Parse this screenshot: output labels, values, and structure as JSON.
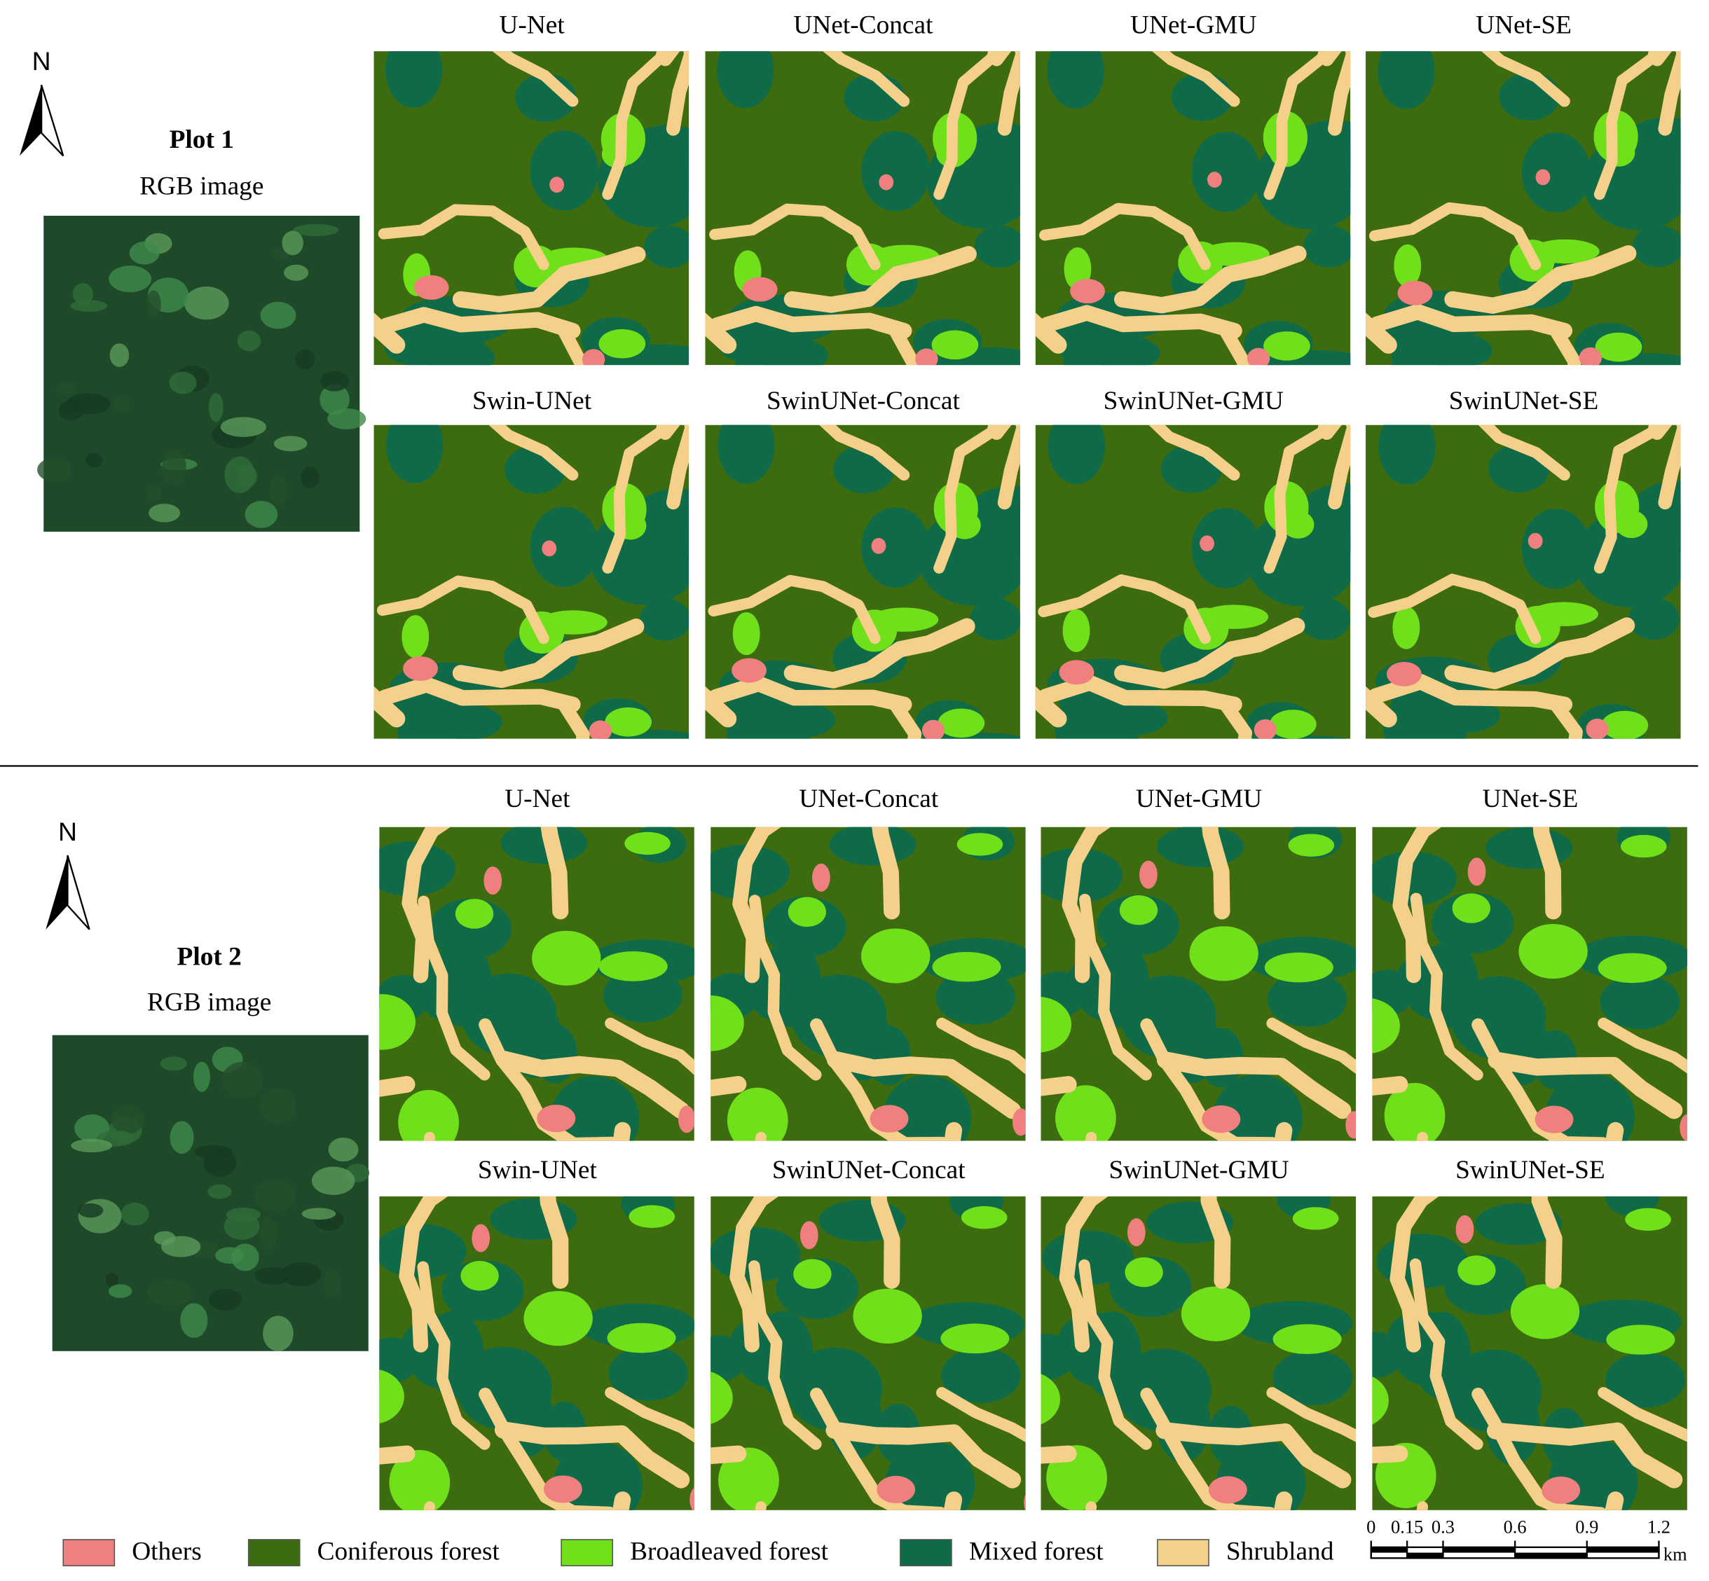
{
  "plots": [
    {
      "label": "Plot 1",
      "image_label": "RGB image",
      "north": "N",
      "models": [
        "U-Net",
        "UNet-Concat",
        "UNet-GMU",
        "UNet-SE",
        "Swin-UNet",
        "SwinUNet-Concat",
        "SwinUNet-GMU",
        "SwinUNet-SE"
      ]
    },
    {
      "label": "Plot 2",
      "image_label": "RGB image",
      "north": "N",
      "models": [
        "U-Net",
        "UNet-Concat",
        "UNet-GMU",
        "UNet-SE",
        "Swin-UNet",
        "SwinUNet-Concat",
        "SwinUNet-GMU",
        "SwinUNet-SE"
      ]
    }
  ],
  "legend": [
    {
      "name": "Others",
      "color": "#f08080"
    },
    {
      "name": "Coniferous forest",
      "color": "#3d6b10"
    },
    {
      "name": "Broadleaved forest",
      "color": "#6fe01a"
    },
    {
      "name": "Mixed forest",
      "color": "#0f6b47"
    },
    {
      "name": "Shrubland",
      "color": "#f5d08a"
    }
  ],
  "scale_bar": {
    "ticks": [
      0,
      0.15,
      0.3,
      0.6,
      0.9,
      1.2
    ],
    "unit": "km"
  }
}
